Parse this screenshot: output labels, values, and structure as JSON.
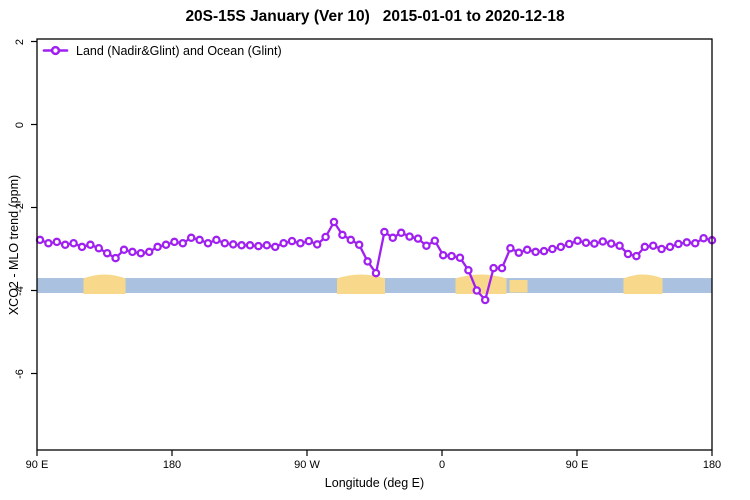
{
  "title": "20S-15S January (Ver 10)   2015-01-01 to 2020-12-18",
  "legend": {
    "label": "Land (Nadir&Glint) and Ocean (Glint)",
    "position": "top-left",
    "boxed": false
  },
  "colors": {
    "series_purple": "#a020f0",
    "marker_fill": "#ffffff",
    "band_blue": "#aac2e0",
    "patch_tan": "#f8d98c",
    "axis": "#000000",
    "background": "#ffffff"
  },
  "chart_data": {
    "type": "line",
    "title": "20S-15S January (Ver 10)   2015-01-01 to 2020-12-18",
    "xlabel": "Longitude (deg E)",
    "ylabel": "XCO2 - MLO trend (ppm)",
    "grid": false,
    "legend_position": "top-left",
    "xlim": [
      90,
      540
    ],
    "ylim": [
      -7.8,
      2.1
    ],
    "x_ticks": [
      90,
      180,
      270,
      360,
      450,
      540
    ],
    "x_tick_labels": [
      "90 E",
      "180",
      "90 W",
      "0",
      "90 E",
      "180"
    ],
    "y_ticks": [
      2,
      0,
      -2,
      -4,
      -6
    ],
    "y_tick_labels": [
      "2",
      "0",
      "-2",
      "-4",
      "-6"
    ],
    "band": {
      "name": "reference-band",
      "y_from": -3.7,
      "y_to": -4.06,
      "x_from": 90,
      "x_to": 540
    },
    "patches": [
      {
        "name": "tan-patch-1",
        "from": 121,
        "to": 149,
        "bump": true
      },
      {
        "name": "tan-patch-2",
        "from": 290,
        "to": 322,
        "bump": true
      },
      {
        "name": "tan-patch-3",
        "from": 369,
        "to": 403,
        "bump": true
      },
      {
        "name": "tan-patch-4",
        "from": 405,
        "to": 417,
        "bump": false
      },
      {
        "name": "tan-patch-5",
        "from": 481,
        "to": 507,
        "bump": true
      }
    ],
    "series": [
      {
        "name": "Land (Nadir&Glint) and Ocean (Glint)",
        "marker": "open-circle",
        "x": [
          92,
          97.6,
          103.2,
          108.8,
          114.4,
          120,
          125.6,
          131.2,
          136.8,
          142.4,
          148,
          153.6,
          159.2,
          164.8,
          170.4,
          176,
          181.6,
          187.2,
          192.8,
          198.4,
          204,
          209.6,
          215.2,
          220.8,
          226.4,
          232,
          237.6,
          243.2,
          248.8,
          254.4,
          260,
          265.6,
          271.2,
          276.8,
          282.4,
          288,
          293.6,
          299.2,
          304.8,
          310.4,
          316,
          321.6,
          327.2,
          332.8,
          338.4,
          344,
          349.6,
          355.2,
          360.8,
          366.4,
          372,
          377.6,
          383.2,
          388.8,
          394.4,
          400,
          405.6,
          411.2,
          416.8,
          422.4,
          428,
          433.6,
          439.2,
          444.8,
          450.4,
          456,
          461.6,
          467.2,
          472.8,
          478.4,
          484,
          489.6,
          495.2,
          500.8,
          506.4,
          512,
          517.6,
          523.2,
          528.8,
          534.4,
          540
        ],
        "y": [
          -2.78,
          -2.86,
          -2.83,
          -2.9,
          -2.86,
          -2.95,
          -2.9,
          -2.98,
          -3.1,
          -3.22,
          -3.02,
          -3.07,
          -3.1,
          -3.07,
          -2.95,
          -2.9,
          -2.83,
          -2.86,
          -2.73,
          -2.78,
          -2.86,
          -2.78,
          -2.86,
          -2.89,
          -2.91,
          -2.91,
          -2.93,
          -2.91,
          -2.95,
          -2.86,
          -2.81,
          -2.86,
          -2.81,
          -2.89,
          -2.71,
          -2.35,
          -2.66,
          -2.78,
          -2.9,
          -3.3,
          -3.58,
          -2.59,
          -2.73,
          -2.61,
          -2.7,
          -2.75,
          -2.92,
          -2.8,
          -3.15,
          -3.17,
          -3.21,
          -3.51,
          -4.0,
          -4.23,
          -3.46,
          -3.46,
          -2.98,
          -3.09,
          -3.02,
          -3.07,
          -3.05,
          -3.0,
          -2.95,
          -2.88,
          -2.8,
          -2.85,
          -2.87,
          -2.82,
          -2.87,
          -2.92,
          -3.12,
          -3.17,
          -2.95,
          -2.92,
          -3.0,
          -2.95,
          -2.88,
          -2.84,
          -2.86,
          -2.74,
          -2.79
        ]
      }
    ]
  }
}
